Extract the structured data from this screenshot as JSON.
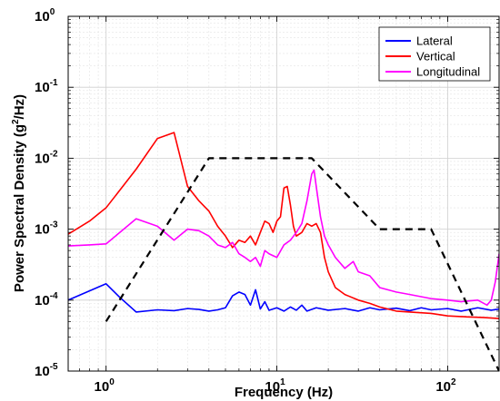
{
  "chart_data": {
    "type": "line",
    "xlabel": "Frequency (Hz)",
    "ylabel_parts": {
      "pre": "Power Spectral Density (g",
      "sup": "2",
      "post": "/Hz)"
    },
    "xscale": "log",
    "yscale": "log",
    "xlim": [
      0.6,
      200
    ],
    "ylim": [
      1e-05,
      1
    ],
    "grid": true,
    "minor_grid": true,
    "legend_position": "top-right",
    "x_ticks": [
      {
        "value": 1,
        "base": "10",
        "exp": "0"
      },
      {
        "value": 10,
        "base": "10",
        "exp": "1"
      },
      {
        "value": 100,
        "base": "10",
        "exp": "2"
      }
    ],
    "y_ticks": [
      {
        "value": 1,
        "base": "10",
        "exp": "0"
      },
      {
        "value": 0.1,
        "base": "10",
        "exp": "-1"
      },
      {
        "value": 0.01,
        "base": "10",
        "exp": "-2"
      },
      {
        "value": 0.001,
        "base": "10",
        "exp": "-3"
      },
      {
        "value": 0.0001,
        "base": "10",
        "exp": "-4"
      },
      {
        "value": 1e-05,
        "base": "10",
        "exp": "-5"
      }
    ],
    "series": [
      {
        "name": "Lateral",
        "color": "#0000ff",
        "points": [
          [
            0.6,
            0.0001
          ],
          [
            0.8,
            0.000135
          ],
          [
            1.0,
            0.00017
          ],
          [
            1.2,
            0.00011
          ],
          [
            1.5,
            6.8e-05
          ],
          [
            2.0,
            7.3e-05
          ],
          [
            2.5,
            7.1e-05
          ],
          [
            3.0,
            7.6e-05
          ],
          [
            3.5,
            7.4e-05
          ],
          [
            4.0,
            7e-05
          ],
          [
            4.5,
            7.3e-05
          ],
          [
            5.0,
            7.8e-05
          ],
          [
            5.5,
            0.000115
          ],
          [
            6.0,
            0.00013
          ],
          [
            6.5,
            0.00012
          ],
          [
            7.0,
            8.5e-05
          ],
          [
            7.5,
            0.00014
          ],
          [
            8.0,
            7.5e-05
          ],
          [
            8.5,
            9.5e-05
          ],
          [
            9.0,
            7.2e-05
          ],
          [
            10.0,
            7.8e-05
          ],
          [
            11.0,
            7e-05
          ],
          [
            12.0,
            8e-05
          ],
          [
            13.0,
            7.2e-05
          ],
          [
            14.0,
            8.5e-05
          ],
          [
            15.0,
            7e-05
          ],
          [
            17.0,
            7.8e-05
          ],
          [
            20.0,
            7.2e-05
          ],
          [
            25.0,
            7.6e-05
          ],
          [
            30.0,
            7e-05
          ],
          [
            35.0,
            7.8e-05
          ],
          [
            40.0,
            7.3e-05
          ],
          [
            50.0,
            7.7e-05
          ],
          [
            60.0,
            7.1e-05
          ],
          [
            70.0,
            7.8e-05
          ],
          [
            80.0,
            7.3e-05
          ],
          [
            100.0,
            7.6e-05
          ],
          [
            120.0,
            7e-05
          ],
          [
            150.0,
            7.8e-05
          ],
          [
            180.0,
            7.2e-05
          ],
          [
            200.0,
            7.5e-05
          ]
        ]
      },
      {
        "name": "Vertical",
        "color": "#ff0000",
        "points": [
          [
            0.6,
            0.00085
          ],
          [
            0.8,
            0.0013
          ],
          [
            1.0,
            0.002
          ],
          [
            1.5,
            0.007
          ],
          [
            2.0,
            0.019
          ],
          [
            2.5,
            0.023
          ],
          [
            3.0,
            0.004
          ],
          [
            3.5,
            0.0025
          ],
          [
            4.0,
            0.0018
          ],
          [
            4.5,
            0.0011
          ],
          [
            5.0,
            0.0008
          ],
          [
            5.5,
            0.00055
          ],
          [
            6.0,
            0.0007
          ],
          [
            6.5,
            0.00065
          ],
          [
            7.0,
            0.0008
          ],
          [
            7.5,
            0.0006
          ],
          [
            8.0,
            0.0009
          ],
          [
            8.5,
            0.0013
          ],
          [
            9.0,
            0.0012
          ],
          [
            9.5,
            0.0009
          ],
          [
            10.0,
            0.0013
          ],
          [
            10.5,
            0.0015
          ],
          [
            11.0,
            0.0038
          ],
          [
            11.5,
            0.004
          ],
          [
            12.0,
            0.0022
          ],
          [
            12.5,
            0.0011
          ],
          [
            13.0,
            0.0008
          ],
          [
            14.0,
            0.0009
          ],
          [
            15.0,
            0.0012
          ],
          [
            16.0,
            0.0011
          ],
          [
            17.0,
            0.0012
          ],
          [
            18.0,
            0.0009
          ],
          [
            19.0,
            0.0004
          ],
          [
            20.0,
            0.00025
          ],
          [
            22.0,
            0.00015
          ],
          [
            25.0,
            0.00012
          ],
          [
            30.0,
            0.0001
          ],
          [
            35.0,
            9e-05
          ],
          [
            40.0,
            8e-05
          ],
          [
            50.0,
            7e-05
          ],
          [
            60.0,
            6.8e-05
          ],
          [
            80.0,
            6.5e-05
          ],
          [
            100.0,
            6e-05
          ],
          [
            130.0,
            5.8e-05
          ],
          [
            160.0,
            5.7e-05
          ],
          [
            200.0,
            5.5e-05
          ]
        ]
      },
      {
        "name": "Longitudinal",
        "color": "#ff00ff",
        "points": [
          [
            0.6,
            0.00058
          ],
          [
            0.8,
            0.0006
          ],
          [
            1.0,
            0.00062
          ],
          [
            1.5,
            0.0014
          ],
          [
            2.0,
            0.0011
          ],
          [
            2.5,
            0.0007
          ],
          [
            3.0,
            0.001
          ],
          [
            3.5,
            0.00095
          ],
          [
            4.0,
            0.0008
          ],
          [
            4.5,
            0.0006
          ],
          [
            5.0,
            0.00055
          ],
          [
            5.5,
            0.00065
          ],
          [
            6.0,
            0.00045
          ],
          [
            6.5,
            0.0004
          ],
          [
            7.0,
            0.00035
          ],
          [
            7.5,
            0.0004
          ],
          [
            8.0,
            0.0003
          ],
          [
            8.5,
            0.0005
          ],
          [
            9.0,
            0.00045
          ],
          [
            10.0,
            0.0004
          ],
          [
            11.0,
            0.0006
          ],
          [
            12.0,
            0.0007
          ],
          [
            13.0,
            0.0009
          ],
          [
            14.0,
            0.0012
          ],
          [
            15.0,
            0.0025
          ],
          [
            16.0,
            0.006
          ],
          [
            16.5,
            0.0068
          ],
          [
            17.0,
            0.004
          ],
          [
            18.0,
            0.0015
          ],
          [
            19.0,
            0.0008
          ],
          [
            20.0,
            0.0006
          ],
          [
            22.0,
            0.0004
          ],
          [
            25.0,
            0.00028
          ],
          [
            28.0,
            0.00035
          ],
          [
            30.0,
            0.00025
          ],
          [
            35.0,
            0.00022
          ],
          [
            40.0,
            0.00015
          ],
          [
            50.0,
            0.00013
          ],
          [
            60.0,
            0.00012
          ],
          [
            80.0,
            0.000105
          ],
          [
            100.0,
            0.0001
          ],
          [
            120.0,
            9.5e-05
          ],
          [
            150.0,
            0.0001
          ],
          [
            170.0,
            8.5e-05
          ],
          [
            180.0,
            0.0001
          ],
          [
            190.0,
            0.00018
          ],
          [
            200.0,
            0.00045
          ]
        ]
      },
      {
        "name": "",
        "color": "#000000",
        "dashed": true,
        "points": [
          [
            1.0,
            5e-05
          ],
          [
            4.0,
            0.01
          ],
          [
            16.0,
            0.01
          ],
          [
            40.0,
            0.001
          ],
          [
            80.0,
            0.001
          ],
          [
            200.0,
            1e-05
          ]
        ]
      }
    ]
  }
}
